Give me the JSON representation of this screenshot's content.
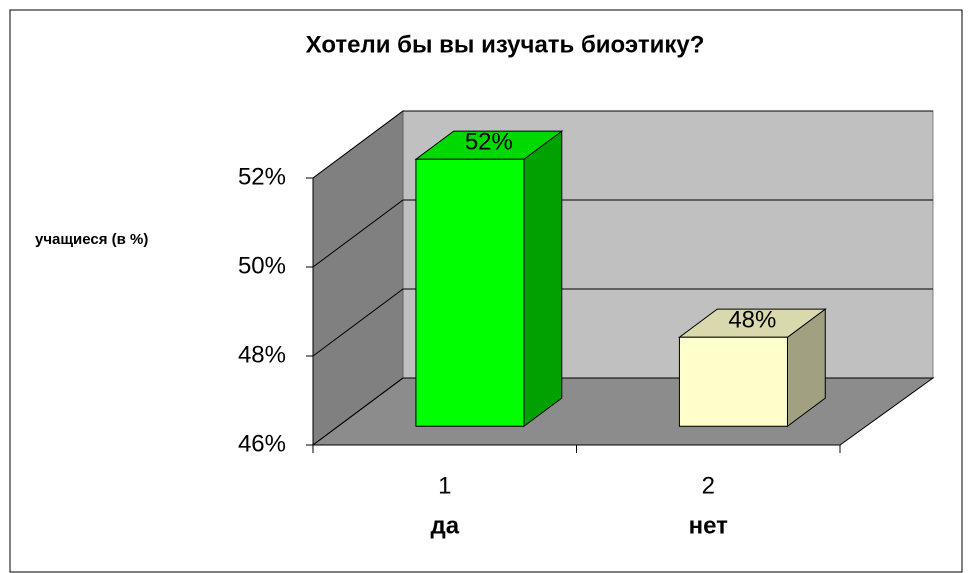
{
  "chart_data": {
    "type": "bar3d",
    "title": "Хотели бы вы изучать биоэтику?",
    "y_axis_label": "учащиеся (в %)",
    "categories": [
      "1",
      "2"
    ],
    "category_labels": [
      "да",
      "нет"
    ],
    "values": [
      52,
      48
    ],
    "value_labels": [
      "52%",
      "48%"
    ],
    "colors": [
      "#00ff00",
      "#ffffcc"
    ],
    "ylim": [
      46,
      52
    ],
    "yticks": [
      {
        "value": 46,
        "label": "46%"
      },
      {
        "value": 48,
        "label": "48%"
      },
      {
        "value": 50,
        "label": "50%"
      },
      {
        "value": 52,
        "label": "52%"
      }
    ],
    "grid": true
  }
}
